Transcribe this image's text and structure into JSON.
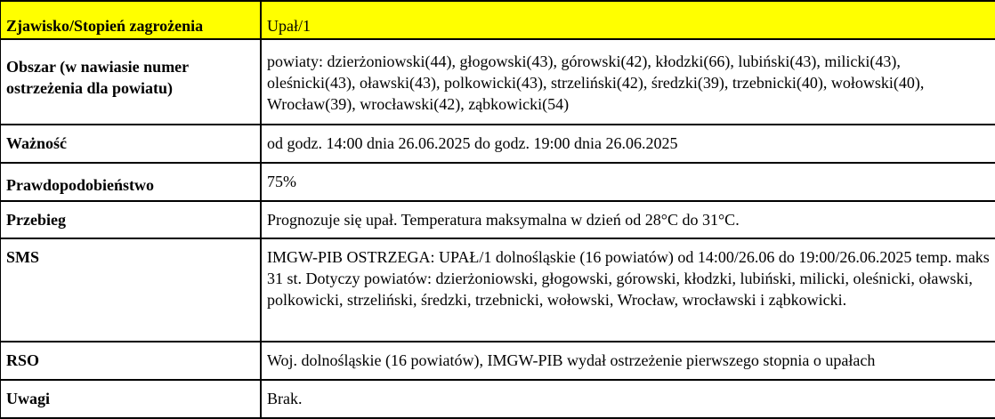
{
  "header": {
    "label": "Zjawisko/Stopień zagrożenia",
    "value": "Upał/1",
    "highlight_color": "#ffff00"
  },
  "rows": [
    {
      "label": "Obszar (w nawiasie numer ostrzeżenia dla powiatu)",
      "value": "powiaty: dzierżoniowski(44), głogowski(43), górowski(42), kłodzki(66), lubiński(43), milicki(43), oleśnicki(43),  oławski(43), polkowicki(43), strzeliński(42), średzki(39), trzebnicki(40), wołowski(40), Wrocław(39), wrocławski(42), ząbkowicki(54)"
    },
    {
      "label": "Ważność",
      "value": "od godz. 14:00 dnia 26.06.2025 do godz. 19:00 dnia 26.06.2025"
    },
    {
      "label": "Prawdopodobieństwo",
      "value": "75%"
    },
    {
      "label": "Przebieg",
      "value": "Prognozuje się upał. Temperatura maksymalna w dzień od 28°C do 31°C."
    },
    {
      "label": "SMS",
      "value": "IMGW-PIB OSTRZEGA: UPAŁ/1 dolnośląskie  (16 powiatów) od 14:00/26.06 do 19:00/26.06.2025 temp. maks 31 st. Dotyczy powiatów: dzierżoniowski, głogowski, górowski, kłodzki, lubiński, milicki, oleśnicki,  oławski, polkowicki, strzeliński, średzki,  trzebnicki, wołowski, Wrocław, wrocławski i ząbkowicki."
    },
    {
      "label": "RSO",
      "value": "Woj. dolnośląskie  (16 powiatów), IMGW-PIB wydał ostrzeżenie pierwszego stopnia o upałach"
    },
    {
      "label": "Uwagi",
      "value": "Brak."
    }
  ]
}
